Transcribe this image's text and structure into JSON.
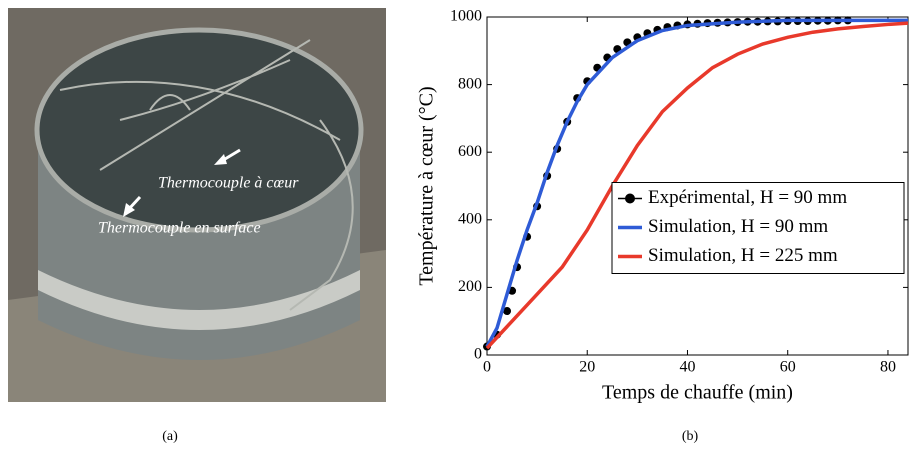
{
  "panel_a": {
    "labels": [
      "Thermocouple à cœur",
      "Thermocouple en surface"
    ],
    "caption": "(a)"
  },
  "chart_data": {
    "type": "line",
    "caption": "(b)",
    "xlabel": "Temps de chauffe (min)",
    "ylabel": "Température à cœur (°C)",
    "xlim": [
      0,
      84
    ],
    "ylim": [
      0,
      1000
    ],
    "xticks": [
      0,
      20,
      40,
      60,
      80
    ],
    "yticks": [
      0,
      200,
      400,
      600,
      800,
      1000
    ],
    "grid": false,
    "legend": "right",
    "series": [
      {
        "name": "Expérimental, H = 90 mm",
        "color": "#000000",
        "marker": "o",
        "line": false,
        "x": [
          0,
          2,
          4,
          5,
          6,
          8,
          10,
          12,
          14,
          16,
          18,
          20,
          22,
          24,
          26,
          28,
          30,
          32,
          34,
          36,
          38,
          40,
          42,
          44,
          46,
          48,
          50,
          52,
          54,
          56,
          58,
          60,
          62,
          64,
          66,
          68,
          70,
          72
        ],
        "values": [
          25,
          60,
          130,
          190,
          260,
          350,
          440,
          530,
          610,
          690,
          760,
          810,
          850,
          880,
          905,
          925,
          940,
          952,
          962,
          970,
          975,
          978,
          980,
          982,
          983,
          984,
          985,
          986,
          986,
          987,
          987,
          988,
          988,
          988,
          989,
          989,
          990,
          990
        ]
      },
      {
        "name": "Simulation, H = 90 mm",
        "color": "#2e5bd6",
        "marker": null,
        "line": true,
        "x": [
          0,
          2,
          4,
          6,
          8,
          10,
          12,
          14,
          16,
          18,
          20,
          25,
          30,
          35,
          40,
          50,
          60,
          70,
          84
        ],
        "values": [
          25,
          80,
          180,
          280,
          370,
          450,
          540,
          620,
          690,
          750,
          800,
          880,
          930,
          960,
          975,
          985,
          990,
          990,
          990
        ]
      },
      {
        "name": "Simulation, H = 225 mm",
        "color": "#e8392b",
        "marker": null,
        "line": true,
        "x": [
          0,
          5,
          10,
          15,
          20,
          25,
          30,
          35,
          40,
          45,
          50,
          55,
          60,
          65,
          70,
          75,
          80,
          84
        ],
        "values": [
          20,
          100,
          180,
          260,
          370,
          500,
          620,
          720,
          790,
          850,
          890,
          920,
          940,
          955,
          965,
          972,
          978,
          982
        ]
      }
    ]
  }
}
